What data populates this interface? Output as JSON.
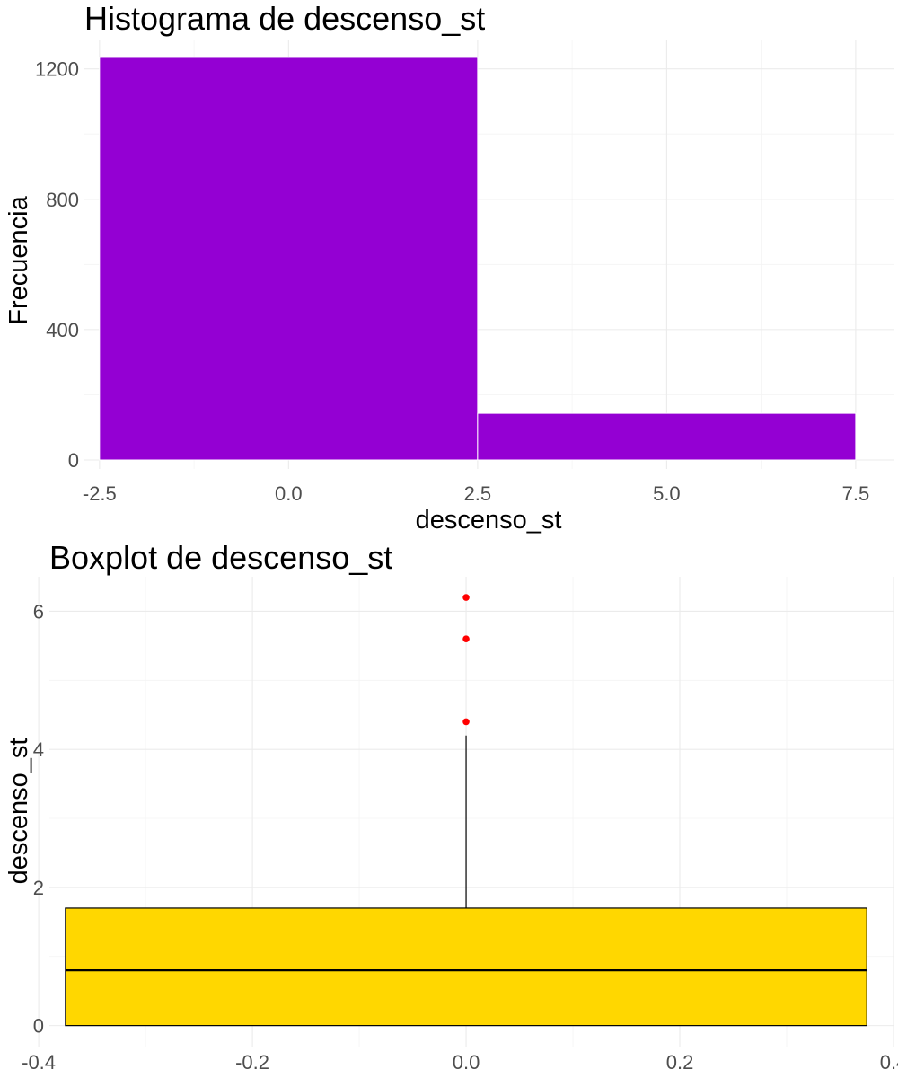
{
  "chart_data": [
    {
      "type": "bar",
      "title": "Histograma de descenso_st",
      "xlabel": "descenso_st",
      "ylabel": "Frecuencia",
      "xlim": [
        -2.7,
        8.0
      ],
      "ylim": [
        0,
        1290
      ],
      "x_ticks": [
        -2.5,
        0.0,
        2.5,
        5.0,
        7.5
      ],
      "x_tick_labels": [
        "-2.5",
        "0.0",
        "2.5",
        "5.0",
        "7.5"
      ],
      "y_ticks": [
        0,
        400,
        800,
        1200
      ],
      "y_tick_labels": [
        "0",
        "400",
        "800",
        "1200"
      ],
      "bins": [
        {
          "x0": -2.5,
          "x1": 2.5,
          "count": 1235
        },
        {
          "x0": 2.5,
          "x1": 7.5,
          "count": 143
        }
      ],
      "bar_color": "#9400D3",
      "grid": true,
      "legend": "none"
    },
    {
      "type": "boxplot",
      "title": "Boxplot de descenso_st",
      "xlabel": "",
      "ylabel": "descenso_st",
      "xlim": [
        -0.39,
        0.4
      ],
      "ylim": [
        -0.2,
        6.5
      ],
      "x_ticks": [
        -0.4,
        -0.2,
        0.0,
        0.2,
        0.4
      ],
      "x_tick_labels": [
        "-0.4",
        "-0.2",
        "0.0",
        "0.2",
        "0.4"
      ],
      "y_ticks": [
        0,
        2,
        4,
        6
      ],
      "y_tick_labels": [
        "0",
        "2",
        "4",
        "6"
      ],
      "box": {
        "x": 0,
        "x_min": -0.375,
        "x_max": 0.375,
        "whisker_low": 0.0,
        "q1": 0.0,
        "median": 0.8,
        "q3": 1.7,
        "whisker_high": 4.2,
        "outliers": [
          4.4,
          5.6,
          6.2
        ]
      },
      "box_color": "#FFD700",
      "outlier_color": "#FF0000",
      "grid": true,
      "legend": "none"
    }
  ]
}
